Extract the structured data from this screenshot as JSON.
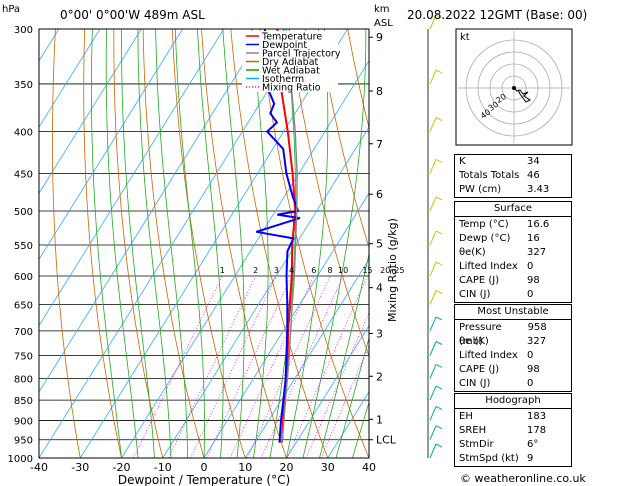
{
  "header": {
    "location": "0°00' 0°00'W 489m ASL",
    "datetime": "20.08.2022 12GMT (Base: 00)",
    "hpa_label": "hPa",
    "km_label": "km",
    "asl_label": "ASL"
  },
  "legend": [
    {
      "label": "Temperature",
      "color": "#ff0000",
      "style": "solid"
    },
    {
      "label": "Dewpoint",
      "color": "#0000ff",
      "style": "solid"
    },
    {
      "label": "Parcel Trajectory",
      "color": "#888888",
      "style": "solid"
    },
    {
      "label": "Dry Adiabat",
      "color": "#cc6600",
      "style": "solid"
    },
    {
      "label": "Wet Adiabat",
      "color": "#00aa00",
      "style": "solid"
    },
    {
      "label": "Isotherm",
      "color": "#00aaff",
      "style": "solid"
    },
    {
      "label": "Mixing Ratio",
      "color": "#ff00ff",
      "style": "dotted"
    }
  ],
  "chart_data": {
    "type": "line",
    "xlabel": "Dewpoint / Temperature (°C)",
    "ylabel": "hPa",
    "right_axis_label": "Mixing Ratio (g/kg)",
    "x_ticks": [
      -40,
      -30,
      -20,
      -10,
      0,
      10,
      20,
      30,
      40
    ],
    "xlim": [
      -40,
      40
    ],
    "pressure_levels": [
      300,
      350,
      400,
      450,
      500,
      550,
      600,
      650,
      700,
      750,
      800,
      850,
      900,
      950,
      1000
    ],
    "km_ticks": [
      {
        "label": "9",
        "p": 307
      },
      {
        "label": "8",
        "p": 357
      },
      {
        "label": "7",
        "p": 414
      },
      {
        "label": "6",
        "p": 477
      },
      {
        "label": "5",
        "p": 548
      },
      {
        "label": "4",
        "p": 620
      },
      {
        "label": "3",
        "p": 705
      },
      {
        "label": "2",
        "p": 795
      },
      {
        "label": "1",
        "p": 897
      },
      {
        "label": "LCL",
        "p": 950
      }
    ],
    "mixing_ratio_labels": [
      "1",
      "2",
      "3",
      "4",
      "6",
      "8",
      "10",
      "15",
      "20",
      "25"
    ],
    "mixing_ratio_values": [
      1,
      2,
      3,
      4,
      6,
      8,
      10,
      15,
      20,
      25
    ],
    "series": [
      {
        "name": "Temperature",
        "color": "#ff0000",
        "p": [
          958,
          900,
          850,
          800,
          750,
          700,
          650,
          600,
          550,
          500,
          450,
          400,
          350,
          300
        ],
        "t": [
          16.6,
          13.5,
          10.8,
          8.0,
          4.8,
          1.2,
          -2.4,
          -6.2,
          -10.8,
          -15.2,
          -21.5,
          -29.0,
          -38.0,
          -47.0
        ]
      },
      {
        "name": "Dewpoint",
        "color": "#0000ff",
        "p": [
          958,
          900,
          850,
          800,
          750,
          700,
          650,
          600,
          560,
          540,
          530,
          510,
          505,
          500,
          480,
          450,
          420,
          400,
          390,
          380,
          370,
          350,
          330,
          310,
          300
        ],
        "t": [
          16,
          13.0,
          10.5,
          7.8,
          4.5,
          1.0,
          -3.0,
          -7.5,
          -11.0,
          -11.5,
          -21.5,
          -13.0,
          -19.0,
          -14.5,
          -18.0,
          -23.0,
          -27.5,
          -34.0,
          -33.0,
          -36.0,
          -36.5,
          -41.5,
          -44.0,
          -48.5,
          -50.0
        ]
      },
      {
        "name": "Parcel Trajectory",
        "color": "#888888",
        "p": [
          958,
          900,
          850,
          800,
          750,
          700,
          650,
          600,
          550,
          500,
          450,
          400,
          350,
          300
        ],
        "t": [
          16.6,
          13.7,
          11.0,
          8.2,
          5.2,
          1.8,
          -1.8,
          -5.6,
          -10.0,
          -14.8,
          -20.4,
          -27.2,
          -35.4,
          -45.5
        ]
      }
    ]
  },
  "indices": {
    "rows": [
      {
        "label": "K",
        "value": "34"
      },
      {
        "label": "Totals Totals",
        "value": "46"
      },
      {
        "label": "PW (cm)",
        "value": "3.43"
      }
    ]
  },
  "surface": {
    "title": "Surface",
    "rows": [
      {
        "label": "Temp (°C)",
        "value": "16.6"
      },
      {
        "label": "Dewp (°C)",
        "value": "16"
      },
      {
        "label": "θe(K)",
        "value": "327"
      },
      {
        "label": "Lifted Index",
        "value": "0"
      },
      {
        "label": "CAPE (J)",
        "value": "98"
      },
      {
        "label": "CIN (J)",
        "value": "0"
      }
    ]
  },
  "most_unstable": {
    "title": "Most Unstable",
    "rows": [
      {
        "label": "Pressure (mb)",
        "value": "958"
      },
      {
        "label": "θe (K)",
        "value": "327"
      },
      {
        "label": "Lifted Index",
        "value": "0"
      },
      {
        "label": "CAPE (J)",
        "value": "98"
      },
      {
        "label": "CIN (J)",
        "value": "0"
      }
    ]
  },
  "hodograph_stats": {
    "title": "Hodograph",
    "rows": [
      {
        "label": "EH",
        "value": "183"
      },
      {
        "label": "SREH",
        "value": "178"
      },
      {
        "label": "StmDir",
        "value": "6°"
      },
      {
        "label": "StmSpd (kt)",
        "value": "9"
      }
    ]
  },
  "hodograph": {
    "unit_label": "kt",
    "ring_labels": [
      "20",
      "30",
      "40"
    ],
    "trace_u": [
      0,
      3,
      6,
      9,
      14,
      10,
      16,
      12,
      6,
      4
    ],
    "trace_v": [
      0,
      -3,
      -2,
      -6,
      -4,
      -8,
      -12,
      -14,
      -6,
      -2
    ]
  },
  "footer": {
    "credit": "© weatheronline.co.uk"
  }
}
